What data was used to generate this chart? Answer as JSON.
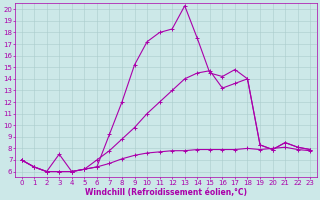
{
  "xlabel": "Windchill (Refroidissement éolien,°C)",
  "background_color": "#cce8e8",
  "grid_color": "#aacccc",
  "line_color": "#aa00aa",
  "xlim": [
    -0.5,
    23.5
  ],
  "ylim": [
    5.5,
    20.5
  ],
  "yticks": [
    6,
    7,
    8,
    9,
    10,
    11,
    12,
    13,
    14,
    15,
    16,
    17,
    18,
    19,
    20
  ],
  "xticks": [
    0,
    1,
    2,
    3,
    4,
    5,
    6,
    7,
    8,
    9,
    10,
    11,
    12,
    13,
    14,
    15,
    16,
    17,
    18,
    19,
    20,
    21,
    22,
    23
  ],
  "line1_x": [
    0,
    1,
    2,
    3,
    4,
    5,
    6,
    7,
    8,
    9,
    10,
    11,
    12,
    13,
    14,
    15,
    16,
    17,
    18,
    19,
    20,
    21,
    22,
    23
  ],
  "line1_y": [
    7.0,
    6.4,
    6.0,
    7.5,
    6.0,
    6.2,
    6.4,
    9.2,
    12.0,
    15.2,
    17.2,
    18.0,
    18.3,
    20.3,
    17.5,
    14.5,
    14.2,
    14.8,
    14.0,
    8.3,
    7.9,
    8.5,
    8.1,
    7.9
  ],
  "line2_x": [
    0,
    1,
    2,
    3,
    4,
    5,
    6,
    7,
    8,
    9,
    10,
    11,
    12,
    13,
    14,
    15,
    16,
    17,
    18,
    19,
    20,
    21,
    22,
    23
  ],
  "line2_y": [
    7.0,
    6.4,
    6.0,
    6.0,
    6.0,
    6.2,
    7.0,
    7.8,
    8.8,
    9.8,
    11.0,
    12.0,
    13.0,
    14.0,
    14.5,
    14.7,
    13.2,
    13.6,
    14.0,
    8.3,
    7.9,
    8.5,
    8.1,
    7.9
  ],
  "line3_x": [
    0,
    1,
    2,
    3,
    4,
    5,
    6,
    7,
    8,
    9,
    10,
    11,
    12,
    13,
    14,
    15,
    16,
    17,
    18,
    19,
    20,
    21,
    22,
    23
  ],
  "line3_y": [
    7.0,
    6.4,
    6.0,
    6.0,
    6.0,
    6.2,
    6.4,
    6.7,
    7.1,
    7.4,
    7.6,
    7.7,
    7.8,
    7.8,
    7.9,
    7.9,
    7.9,
    7.9,
    8.0,
    7.9,
    8.0,
    8.1,
    7.9,
    7.8
  ],
  "xlabel_fontsize": 5.5,
  "tick_fontsize": 5,
  "linewidth": 0.8,
  "markersize": 2.5,
  "markeredgewidth": 0.7
}
